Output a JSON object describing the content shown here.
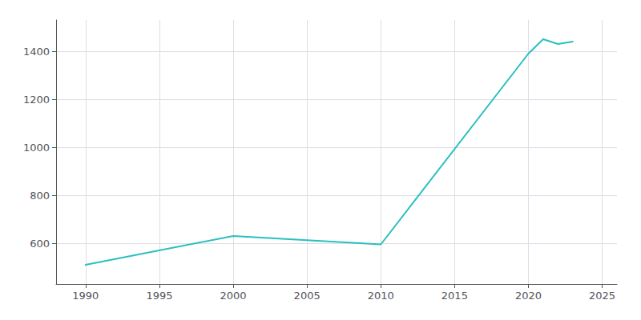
{
  "chart_data": {
    "type": "line",
    "x": [
      1990,
      2000,
      2010,
      2020,
      2021,
      2022,
      2023
    ],
    "values": [
      510,
      630,
      595,
      1390,
      1450,
      1430,
      1440
    ],
    "color": "#2abfbf",
    "xlim": [
      1988,
      2026
    ],
    "xticks": [
      1990,
      1995,
      2000,
      2005,
      2010,
      2015,
      2020,
      2025
    ],
    "ylim": [
      430,
      1530
    ],
    "yticks": [
      600,
      800,
      1000,
      1200,
      1400
    ],
    "grid": true
  }
}
